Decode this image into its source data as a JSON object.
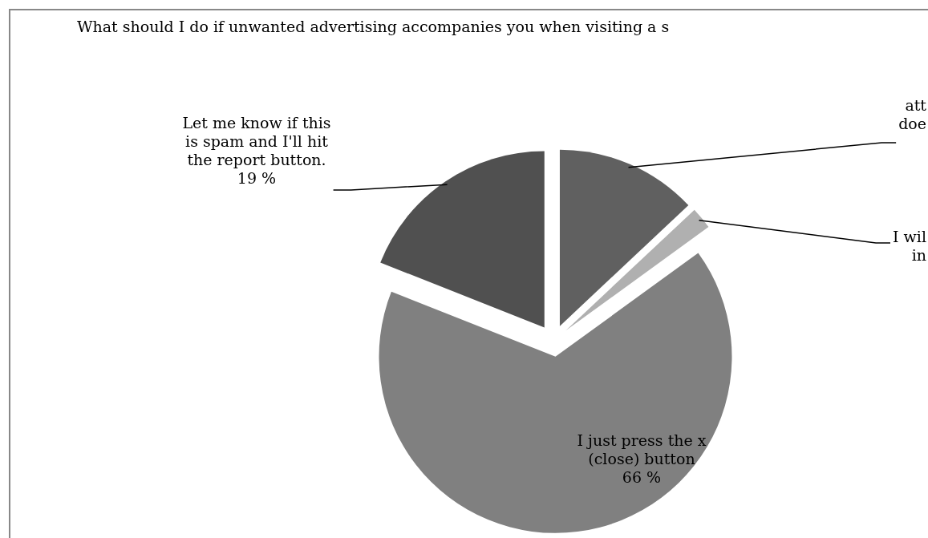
{
  "chart_data": {
    "type": "pie",
    "title": "What should I do if unwanted advertising accompanies you when visiting a s",
    "categories": [
      "att\ndoe",
      "I wil\nin",
      "I just press the x\n(close) button",
      "Let me know if this\nis spam and I'll hit\nthe report button."
    ],
    "values": [
      13,
      2,
      66,
      19
    ],
    "colors": [
      "#606060",
      "#b0b0b0",
      "#808080",
      "#505050"
    ],
    "value_labels": [
      null,
      null,
      "66 %",
      "19 %"
    ]
  }
}
